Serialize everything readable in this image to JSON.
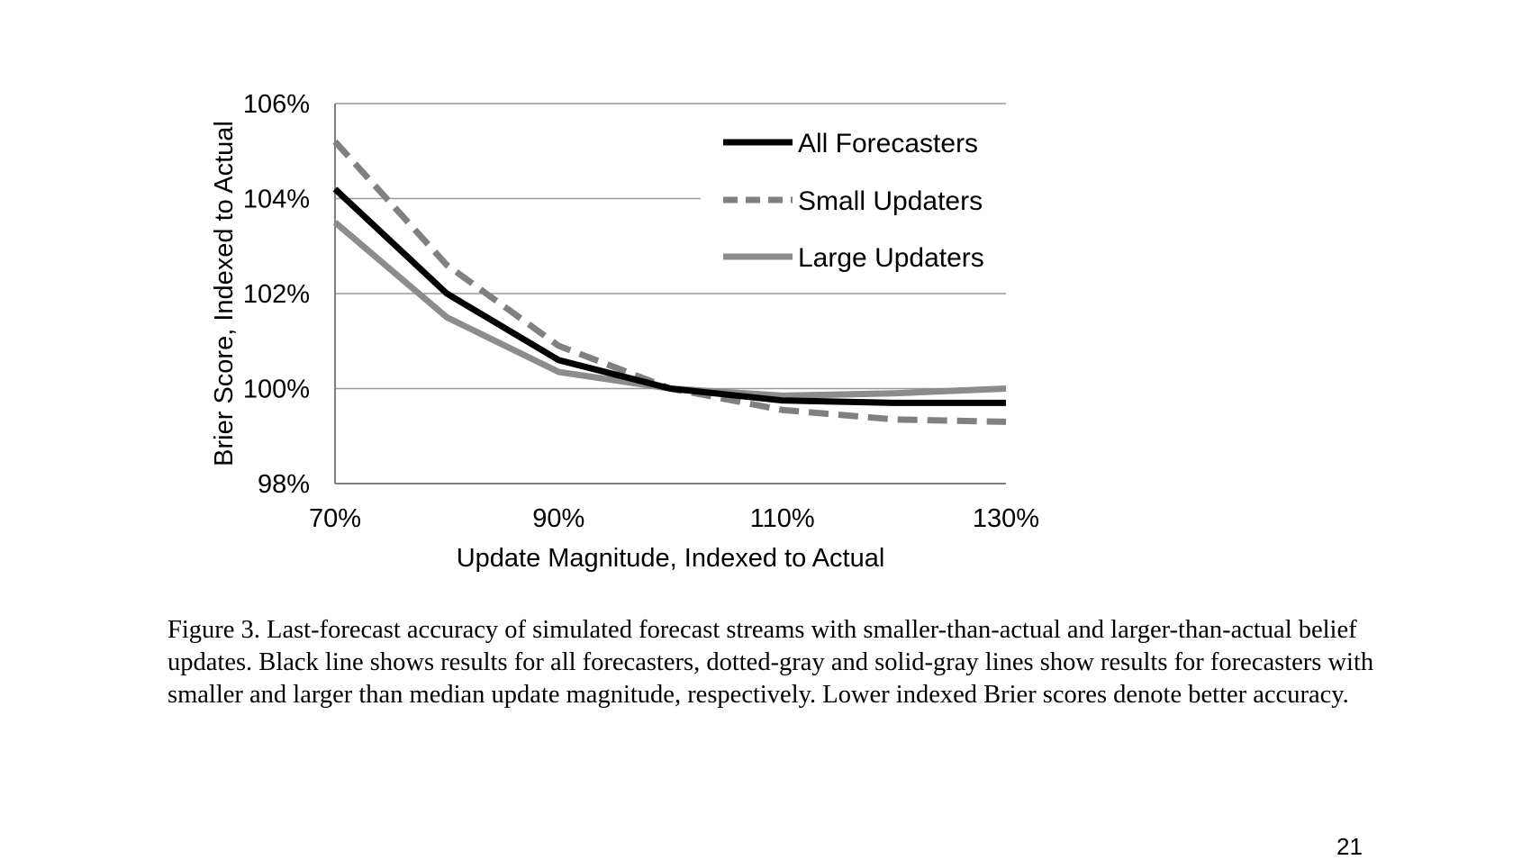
{
  "figure": {
    "caption": "Figure 3. Last-forecast accuracy of simulated forecast streams with smaller-than-actual and larger-than-actual belief updates. Black line shows results for all forecasters, dotted-gray and solid-gray lines show results for forecasters with smaller and larger than median update magnitude, respectively. Lower indexed Brier scores denote better accuracy.",
    "page_number": "21"
  },
  "chart_data": {
    "type": "line",
    "title": "",
    "xlabel": "Update Magnitude, Indexed to Actual",
    "ylabel": "Brier Score, Indexed to Actual",
    "x": [
      70,
      80,
      90,
      100,
      110,
      120,
      130
    ],
    "x_ticks": [
      70,
      90,
      110,
      130
    ],
    "x_tick_labels": [
      "70%",
      "90%",
      "110%",
      "130%"
    ],
    "xlim": [
      70,
      130
    ],
    "y_ticks": [
      98,
      100,
      102,
      104,
      106
    ],
    "y_tick_labels": [
      "98%",
      "100%",
      "102%",
      "104%",
      "106%"
    ],
    "ylim": [
      98,
      106
    ],
    "grid": "horizontal",
    "legend_position": "top-right",
    "series": [
      {
        "name": "All Forecasters",
        "values": [
          104.2,
          102.0,
          100.6,
          100.0,
          99.75,
          99.7,
          99.7
        ],
        "color": "#000000",
        "style": "solid"
      },
      {
        "name": "Small Updaters",
        "values": [
          105.2,
          102.6,
          100.9,
          100.0,
          99.55,
          99.35,
          99.3
        ],
        "color": "#808080",
        "style": "dashed"
      },
      {
        "name": "Large Updaters",
        "values": [
          103.5,
          101.5,
          100.35,
          100.0,
          99.85,
          99.9,
          100.0
        ],
        "color": "#8c8c8c",
        "style": "solid"
      }
    ]
  }
}
